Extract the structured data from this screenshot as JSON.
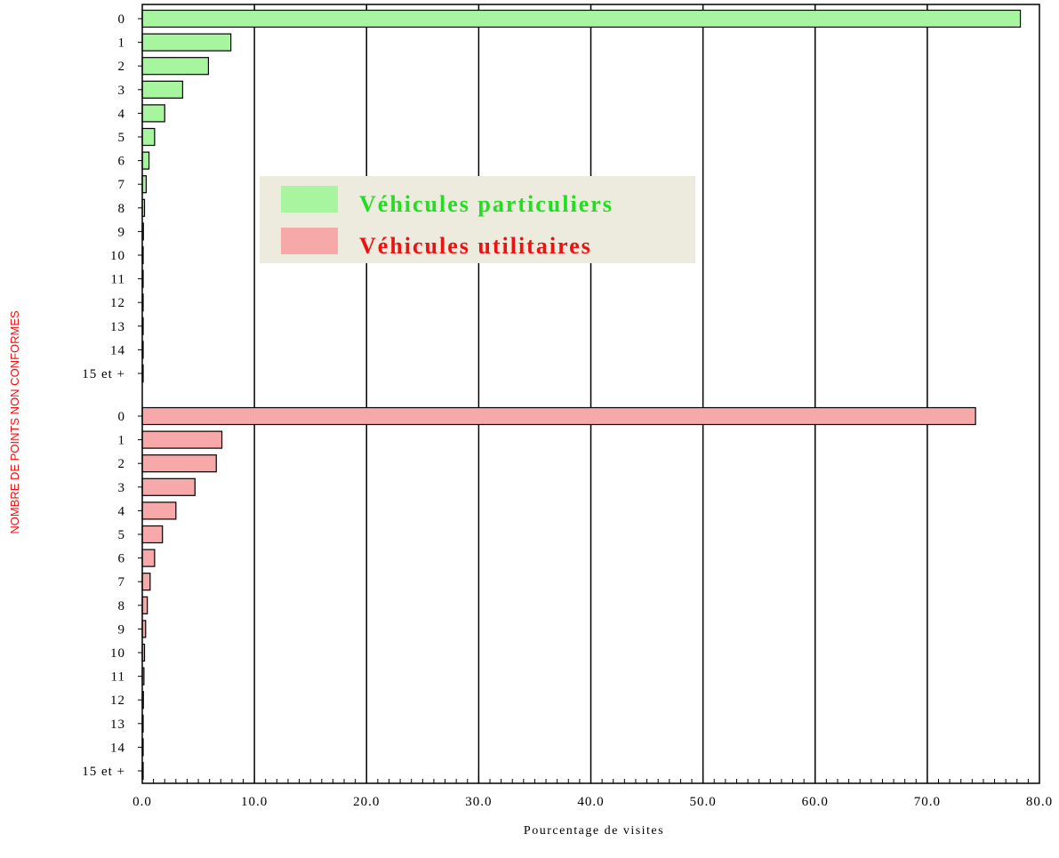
{
  "chart_data": {
    "type": "bar",
    "orientation": "horizontal",
    "xlabel": "Pourcentage de visites",
    "ylabel": "NOMBRE DE POINTS NON CONFORMES",
    "xlim": [
      0,
      80
    ],
    "x_ticks": [
      "0.0",
      "10.0",
      "20.0",
      "30.0",
      "40.0",
      "50.0",
      "60.0",
      "70.0",
      "80.0"
    ],
    "grid": "vertical",
    "legend_position": "upper-center",
    "categories": [
      "0",
      "1",
      "2",
      "3",
      "4",
      "5",
      "6",
      "7",
      "8",
      "9",
      "10",
      "11",
      "12",
      "13",
      "14",
      "15 et +"
    ],
    "series": [
      {
        "name": "Véhicules particuliers",
        "color": "#a8f5a0",
        "text_color": "#22dd22",
        "values": [
          78.3,
          7.9,
          5.9,
          3.6,
          2.0,
          1.1,
          0.6,
          0.35,
          0.2,
          0.1,
          0.08,
          0.05,
          0.04,
          0.03,
          0.02,
          0.02
        ]
      },
      {
        "name": "Véhicules utilitaires",
        "color": "#f7a8a8",
        "text_color": "#ee1111",
        "values": [
          74.3,
          7.1,
          6.6,
          4.7,
          3.0,
          1.8,
          1.1,
          0.7,
          0.45,
          0.3,
          0.2,
          0.15,
          0.1,
          0.06,
          0.04,
          0.04
        ]
      }
    ]
  }
}
